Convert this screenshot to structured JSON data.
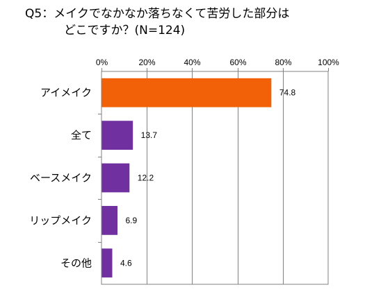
{
  "chart_data": {
    "type": "bar",
    "orientation": "horizontal",
    "title_line1": "Q5：メイクでなかなか落ちなくて苦労した部分は",
    "title_line2": "どこですか？(N=124)",
    "categories": [
      "アイメイク",
      "全て",
      "ベースメイク",
      "リップメイク",
      "その他"
    ],
    "values": [
      74.8,
      13.7,
      12.2,
      6.9,
      4.6
    ],
    "value_labels": [
      "74.8",
      "13.7",
      "12.2",
      "6.9",
      "4.6"
    ],
    "bar_colors": [
      "#f26107",
      "#7030a0",
      "#7030a0",
      "#7030a0",
      "#7030a0"
    ],
    "xlim": [
      0,
      100
    ],
    "x_ticks": [
      0,
      20,
      40,
      60,
      80,
      100
    ],
    "x_tick_labels": [
      "0%",
      "20%",
      "40%",
      "60%",
      "80%",
      "100%"
    ],
    "grid": true,
    "axis_position": "top",
    "xlabel": "",
    "ylabel": ""
  }
}
